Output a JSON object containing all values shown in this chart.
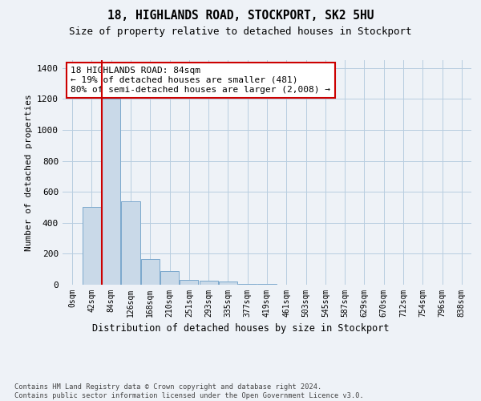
{
  "title": "18, HIGHLANDS ROAD, STOCKPORT, SK2 5HU",
  "subtitle": "Size of property relative to detached houses in Stockport",
  "xlabel": "Distribution of detached houses by size in Stockport",
  "ylabel": "Number of detached properties",
  "bar_color": "#c9d9e8",
  "bar_edge_color": "#7aa8cc",
  "vline_color": "#cc0000",
  "annotation_text": "18 HIGHLANDS ROAD: 84sqm\n← 19% of detached houses are smaller (481)\n80% of semi-detached houses are larger (2,008) →",
  "annotation_box_color": "#ffffff",
  "annotation_box_edge": "#cc0000",
  "categories": [
    "0sqm",
    "42sqm",
    "84sqm",
    "126sqm",
    "168sqm",
    "210sqm",
    "251sqm",
    "293sqm",
    "335sqm",
    "377sqm",
    "419sqm",
    "461sqm",
    "503sqm",
    "545sqm",
    "587sqm",
    "629sqm",
    "670sqm",
    "712sqm",
    "754sqm",
    "796sqm",
    "838sqm"
  ],
  "values": [
    0,
    500,
    1200,
    540,
    165,
    90,
    30,
    25,
    20,
    5,
    5,
    0,
    0,
    0,
    0,
    0,
    0,
    0,
    0,
    0,
    0
  ],
  "ylim": [
    0,
    1450
  ],
  "yticks": [
    0,
    200,
    400,
    600,
    800,
    1000,
    1200,
    1400
  ],
  "footer_text": "Contains HM Land Registry data © Crown copyright and database right 2024.\nContains public sector information licensed under the Open Government Licence v3.0.",
  "background_color": "#eef2f7",
  "plot_bg_color": "#eef2f7",
  "grid_color": "#b8cde0"
}
